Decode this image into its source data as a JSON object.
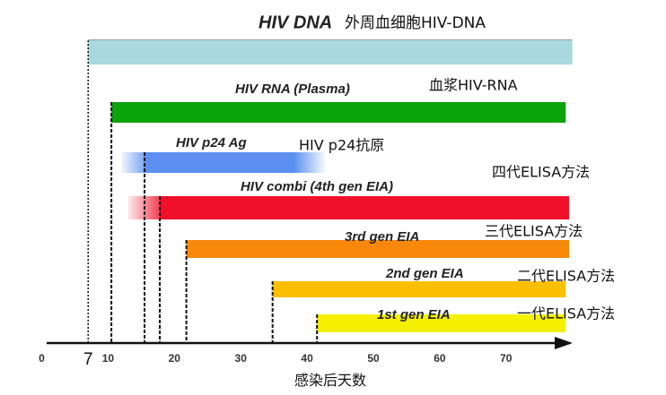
{
  "chart_data": {
    "type": "bar",
    "xlabel": "感染后天数",
    "xlim": [
      0,
      80
    ],
    "x_ticks": [
      "0",
      "10",
      "20",
      "30",
      "40",
      "50",
      "60",
      "70"
    ],
    "highlight_tick": "7",
    "series": [
      {
        "name": "HIV DNA",
        "name_cn": "外周血细胞HIV-DNA",
        "start": 7,
        "end": 80,
        "color": "#a9d8de",
        "fade_in": false,
        "fade_out": false
      },
      {
        "name": "HIV RNA (Plasma)",
        "name_cn": "血浆HIV-RNA",
        "start": 10.5,
        "end": 79,
        "color": "#0aa30a",
        "fade_in": false,
        "fade_out": false
      },
      {
        "name": "HIV p24 Ag",
        "name_cn": "HIV p24抗原",
        "start": 12,
        "end": 43,
        "color": "#5b8ff0",
        "fade_in": true,
        "solid_from": 15.5,
        "fade_out": true,
        "fade_from": 38
      },
      {
        "name": "HIV combi (4th gen EIA)",
        "name_cn": "四代ELISA方法",
        "start": 13,
        "end": 79.5,
        "color": "#f0102a",
        "fade_in": true,
        "solid_from": 17.8,
        "fade_out": false
      },
      {
        "name": "3rd gen EIA",
        "name_cn": "三代ELISA方法",
        "start": 21.8,
        "end": 79.5,
        "color": "#f7880a",
        "fade_in": false,
        "fade_out": false
      },
      {
        "name": "2nd gen EIA",
        "name_cn": "二代ELISA方法",
        "start": 34.8,
        "end": 79,
        "color": "#fac000",
        "fade_in": false,
        "fade_out": false
      },
      {
        "name": "1st gen EIA",
        "name_cn": "一代ELISA方法",
        "start": 41.5,
        "end": 79,
        "color": "#f4f000",
        "fade_in": false,
        "fade_out": false
      }
    ]
  }
}
